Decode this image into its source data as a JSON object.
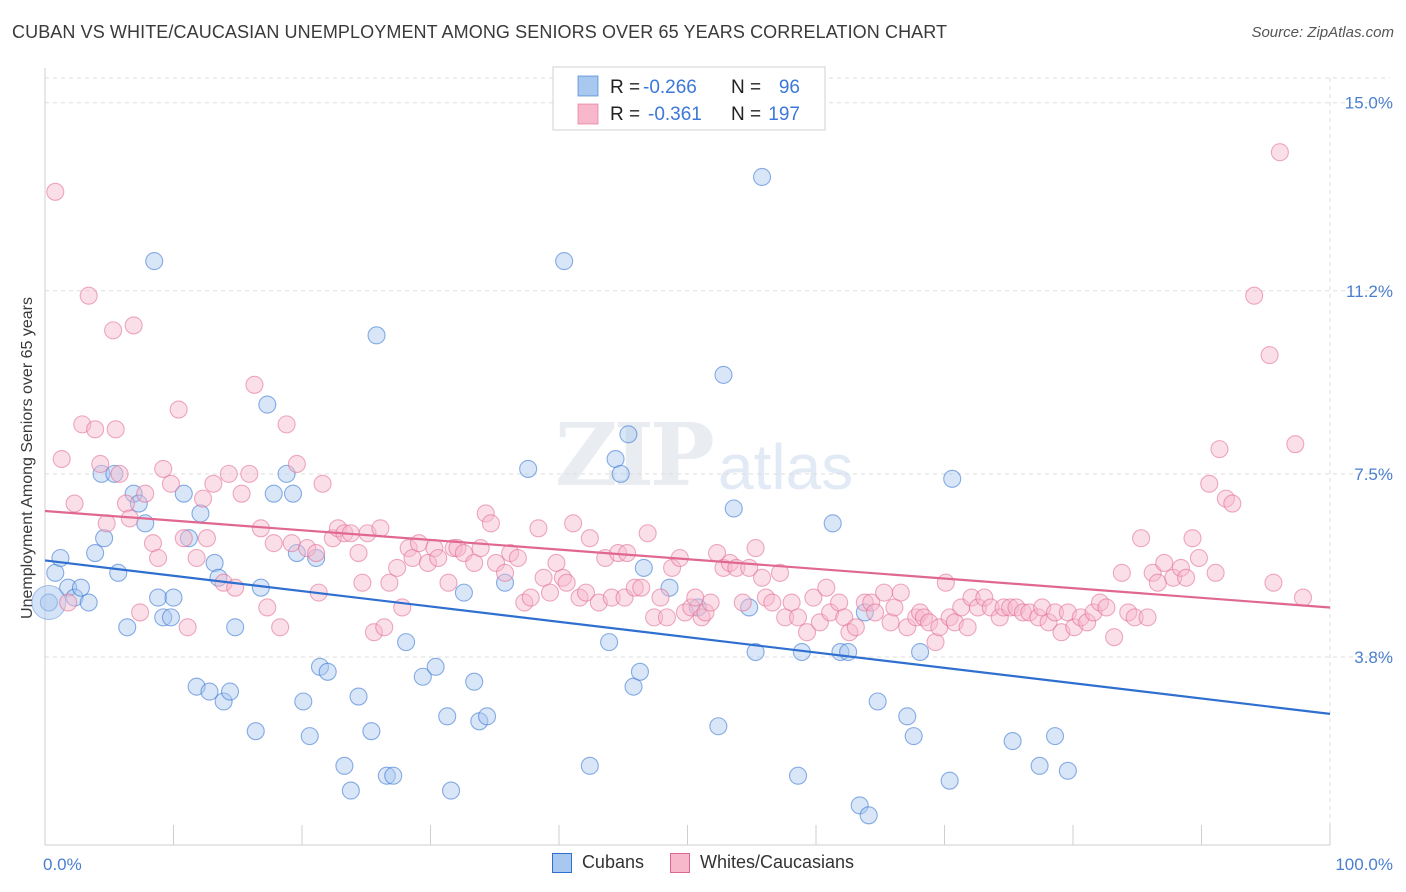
{
  "title": "CUBAN VS WHITE/CAUCASIAN UNEMPLOYMENT AMONG SENIORS OVER 65 YEARS CORRELATION CHART",
  "source": "Source: ZipAtlas.com",
  "watermark": {
    "zip": "ZIP",
    "atlas": "atlas"
  },
  "colors": {
    "cubans_fill": "#a9c8f0",
    "cubans_line": "#2f6fd0",
    "whites_fill": "#f7b8cb",
    "whites_line": "#e06890",
    "tick_text": "#4a7fd0",
    "grid": "#dddddd"
  },
  "legend": {
    "rows": [
      {
        "r_label": "R =",
        "r_value": "-0.266",
        "n_label": "N =",
        "n_value": "96"
      },
      {
        "r_label": "R =",
        "r_value": "-0.361",
        "n_label": "N =",
        "n_value": "197"
      }
    ]
  },
  "bottom_legend": {
    "cubans": "Cubans",
    "whites": "Whites/Caucasians"
  },
  "chart_data": {
    "type": "scatter",
    "title": "CUBAN VS WHITE/CAUCASIAN UNEMPLOYMENT AMONG SENIORS OVER 65 YEARS CORRELATION CHART",
    "xlabel": "",
    "ylabel": "Unemployment Among Seniors over 65 years",
    "xlim": [
      0,
      100
    ],
    "ylim": [
      0,
      15.5
    ],
    "x_ticks": [
      0,
      100
    ],
    "x_tick_labels": [
      "0.0%",
      "100.0%"
    ],
    "y_ticks": [
      3.8,
      7.5,
      11.2,
      15.0
    ],
    "y_tick_labels": [
      "3.8%",
      "7.5%",
      "11.2%",
      "15.0%"
    ],
    "grid": true,
    "legend_position": "top-center",
    "series": [
      {
        "name": "Cubans",
        "R": -0.266,
        "N": 96,
        "trend": {
          "x": [
            0,
            100
          ],
          "y": [
            5.75,
            2.65
          ]
        },
        "points": [
          [
            0.3,
            4.9
          ],
          [
            0.8,
            5.5
          ],
          [
            1.2,
            5.8
          ],
          [
            1.8,
            5.2
          ],
          [
            2.3,
            5.0
          ],
          [
            2.8,
            5.2
          ],
          [
            3.4,
            4.9
          ],
          [
            3.9,
            5.9
          ],
          [
            4.4,
            7.5
          ],
          [
            4.6,
            6.2
          ],
          [
            5.4,
            7.5
          ],
          [
            5.7,
            5.5
          ],
          [
            6.4,
            4.4
          ],
          [
            6.9,
            7.1
          ],
          [
            7.3,
            6.9
          ],
          [
            7.8,
            6.5
          ],
          [
            8.5,
            11.8
          ],
          [
            8.8,
            5.0
          ],
          [
            9.2,
            4.6
          ],
          [
            9.8,
            4.6
          ],
          [
            10.0,
            5.0
          ],
          [
            10.8,
            7.1
          ],
          [
            11.2,
            6.2
          ],
          [
            11.8,
            3.2
          ],
          [
            12.1,
            6.7
          ],
          [
            12.8,
            3.1
          ],
          [
            13.2,
            5.7
          ],
          [
            13.5,
            5.4
          ],
          [
            13.9,
            2.9
          ],
          [
            14.4,
            3.1
          ],
          [
            14.8,
            4.4
          ],
          [
            16.4,
            2.3
          ],
          [
            16.8,
            5.2
          ],
          [
            17.3,
            8.9
          ],
          [
            17.8,
            7.1
          ],
          [
            18.8,
            7.5
          ],
          [
            19.3,
            7.1
          ],
          [
            19.6,
            5.9
          ],
          [
            20.1,
            2.9
          ],
          [
            20.6,
            2.2
          ],
          [
            21.1,
            5.8
          ],
          [
            21.4,
            3.6
          ],
          [
            22.0,
            3.5
          ],
          [
            23.3,
            1.6
          ],
          [
            23.8,
            1.1
          ],
          [
            24.4,
            3.0
          ],
          [
            25.4,
            2.3
          ],
          [
            25.8,
            10.3
          ],
          [
            26.6,
            1.4
          ],
          [
            27.1,
            1.4
          ],
          [
            28.1,
            4.1
          ],
          [
            29.4,
            3.4
          ],
          [
            30.4,
            3.6
          ],
          [
            31.3,
            2.6
          ],
          [
            31.6,
            1.1
          ],
          [
            32.6,
            5.1
          ],
          [
            33.4,
            3.3
          ],
          [
            33.8,
            2.5
          ],
          [
            34.4,
            2.6
          ],
          [
            35.8,
            5.3
          ],
          [
            37.6,
            7.6
          ],
          [
            40.4,
            11.8
          ],
          [
            42.4,
            1.6
          ],
          [
            43.9,
            4.1
          ],
          [
            44.4,
            7.8
          ],
          [
            44.8,
            7.5
          ],
          [
            45.4,
            8.3
          ],
          [
            45.8,
            3.2
          ],
          [
            46.3,
            3.5
          ],
          [
            46.6,
            5.6
          ],
          [
            48.6,
            5.2
          ],
          [
            50.8,
            4.8
          ],
          [
            52.8,
            9.5
          ],
          [
            52.4,
            2.4
          ],
          [
            53.6,
            6.8
          ],
          [
            54.8,
            4.8
          ],
          [
            55.3,
            3.9
          ],
          [
            55.8,
            13.5
          ],
          [
            58.6,
            1.4
          ],
          [
            58.9,
            3.9
          ],
          [
            61.3,
            6.5
          ],
          [
            61.9,
            3.9
          ],
          [
            62.5,
            3.9
          ],
          [
            63.4,
            0.8
          ],
          [
            64.1,
            0.6
          ],
          [
            64.8,
            2.9
          ],
          [
            67.1,
            2.6
          ],
          [
            67.6,
            2.2
          ],
          [
            68.1,
            3.9
          ],
          [
            70.6,
            7.4
          ],
          [
            70.4,
            1.3
          ],
          [
            75.3,
            2.1
          ],
          [
            77.4,
            1.6
          ],
          [
            78.6,
            2.2
          ],
          [
            79.6,
            1.5
          ],
          [
            63.8,
            4.7
          ]
        ]
      },
      {
        "name": "Whites/Caucasians",
        "R": -0.361,
        "N": 197,
        "trend": {
          "x": [
            0,
            100
          ],
          "y": [
            6.75,
            4.8
          ]
        },
        "points": [
          [
            0.8,
            13.2
          ],
          [
            1.3,
            7.8
          ],
          [
            1.8,
            4.9
          ],
          [
            2.3,
            6.9
          ],
          [
            2.9,
            8.5
          ],
          [
            3.4,
            11.1
          ],
          [
            3.9,
            8.4
          ],
          [
            4.3,
            7.7
          ],
          [
            4.8,
            6.5
          ],
          [
            5.3,
            10.4
          ],
          [
            5.5,
            8.4
          ],
          [
            5.8,
            7.5
          ],
          [
            6.3,
            6.9
          ],
          [
            6.6,
            6.6
          ],
          [
            6.9,
            10.5
          ],
          [
            7.4,
            4.7
          ],
          [
            7.8,
            7.1
          ],
          [
            8.4,
            6.1
          ],
          [
            8.8,
            5.8
          ],
          [
            9.2,
            7.6
          ],
          [
            9.8,
            7.3
          ],
          [
            10.4,
            8.8
          ],
          [
            10.8,
            6.2
          ],
          [
            11.1,
            4.4
          ],
          [
            11.8,
            5.8
          ],
          [
            12.3,
            7.0
          ],
          [
            12.6,
            6.2
          ],
          [
            13.1,
            7.3
          ],
          [
            13.9,
            5.3
          ],
          [
            14.3,
            7.5
          ],
          [
            14.8,
            5.2
          ],
          [
            15.3,
            7.1
          ],
          [
            15.9,
            7.5
          ],
          [
            16.3,
            9.3
          ],
          [
            16.8,
            6.4
          ],
          [
            17.3,
            4.8
          ],
          [
            17.8,
            6.1
          ],
          [
            18.3,
            4.4
          ],
          [
            18.8,
            8.5
          ],
          [
            19.2,
            6.1
          ],
          [
            19.6,
            7.7
          ],
          [
            20.4,
            6.0
          ],
          [
            21.1,
            5.9
          ],
          [
            21.3,
            5.1
          ],
          [
            21.6,
            7.3
          ],
          [
            22.4,
            6.2
          ],
          [
            22.8,
            6.4
          ],
          [
            23.3,
            6.3
          ],
          [
            23.8,
            6.3
          ],
          [
            24.4,
            5.9
          ],
          [
            24.7,
            5.3
          ],
          [
            25.1,
            6.3
          ],
          [
            25.6,
            4.3
          ],
          [
            26.1,
            6.4
          ],
          [
            26.4,
            4.4
          ],
          [
            26.8,
            5.3
          ],
          [
            27.4,
            5.6
          ],
          [
            27.8,
            4.8
          ],
          [
            28.3,
            6.0
          ],
          [
            28.6,
            5.8
          ],
          [
            29.1,
            6.1
          ],
          [
            29.8,
            5.7
          ],
          [
            30.3,
            6.0
          ],
          [
            30.6,
            5.8
          ],
          [
            31.4,
            5.3
          ],
          [
            31.8,
            6.0
          ],
          [
            32.1,
            6.0
          ],
          [
            32.6,
            5.9
          ],
          [
            33.4,
            5.7
          ],
          [
            33.9,
            6.0
          ],
          [
            34.3,
            6.7
          ],
          [
            34.7,
            6.5
          ],
          [
            35.1,
            5.7
          ],
          [
            35.8,
            5.5
          ],
          [
            36.2,
            5.9
          ],
          [
            36.8,
            5.8
          ],
          [
            37.3,
            4.9
          ],
          [
            37.8,
            5.0
          ],
          [
            38.4,
            6.4
          ],
          [
            38.8,
            5.4
          ],
          [
            39.3,
            5.1
          ],
          [
            39.8,
            5.7
          ],
          [
            40.3,
            5.4
          ],
          [
            40.6,
            5.3
          ],
          [
            41.1,
            6.5
          ],
          [
            41.6,
            5.0
          ],
          [
            42.1,
            5.1
          ],
          [
            42.4,
            6.2
          ],
          [
            43.1,
            4.9
          ],
          [
            43.6,
            5.8
          ],
          [
            44.1,
            5.0
          ],
          [
            44.6,
            5.9
          ],
          [
            45.1,
            5.0
          ],
          [
            45.3,
            5.9
          ],
          [
            45.9,
            5.2
          ],
          [
            46.4,
            5.2
          ],
          [
            46.9,
            6.3
          ],
          [
            47.4,
            4.6
          ],
          [
            47.9,
            5.0
          ],
          [
            48.4,
            4.6
          ],
          [
            48.8,
            5.6
          ],
          [
            49.4,
            5.8
          ],
          [
            49.8,
            4.7
          ],
          [
            50.3,
            4.8
          ],
          [
            50.6,
            5.0
          ],
          [
            51.1,
            4.6
          ],
          [
            51.4,
            4.7
          ],
          [
            51.8,
            4.9
          ],
          [
            52.3,
            5.9
          ],
          [
            52.8,
            5.6
          ],
          [
            53.3,
            5.7
          ],
          [
            53.8,
            5.6
          ],
          [
            54.3,
            4.9
          ],
          [
            54.8,
            5.6
          ],
          [
            55.3,
            6.0
          ],
          [
            55.8,
            5.4
          ],
          [
            56.1,
            5.0
          ],
          [
            56.6,
            4.9
          ],
          [
            57.2,
            5.5
          ],
          [
            57.6,
            4.6
          ],
          [
            58.1,
            4.9
          ],
          [
            58.6,
            4.6
          ],
          [
            59.3,
            4.3
          ],
          [
            59.8,
            5.0
          ],
          [
            60.3,
            4.5
          ],
          [
            60.8,
            5.2
          ],
          [
            61.1,
            4.7
          ],
          [
            61.8,
            4.9
          ],
          [
            62.2,
            4.6
          ],
          [
            62.6,
            4.3
          ],
          [
            63.1,
            4.4
          ],
          [
            63.8,
            4.9
          ],
          [
            64.3,
            4.9
          ],
          [
            64.6,
            4.7
          ],
          [
            65.3,
            5.1
          ],
          [
            65.8,
            4.5
          ],
          [
            66.1,
            4.8
          ],
          [
            66.6,
            5.1
          ],
          [
            67.1,
            4.4
          ],
          [
            67.8,
            4.6
          ],
          [
            68.1,
            4.7
          ],
          [
            68.4,
            4.6
          ],
          [
            68.8,
            4.5
          ],
          [
            69.3,
            4.1
          ],
          [
            69.6,
            4.4
          ],
          [
            70.1,
            5.3
          ],
          [
            70.4,
            4.6
          ],
          [
            70.8,
            4.5
          ],
          [
            71.3,
            4.8
          ],
          [
            71.8,
            4.4
          ],
          [
            72.1,
            5.0
          ],
          [
            72.6,
            4.8
          ],
          [
            73.1,
            5.0
          ],
          [
            73.6,
            4.8
          ],
          [
            74.3,
            4.6
          ],
          [
            74.6,
            4.8
          ],
          [
            75.1,
            4.8
          ],
          [
            75.6,
            4.8
          ],
          [
            76.1,
            4.7
          ],
          [
            76.6,
            4.7
          ],
          [
            77.3,
            4.6
          ],
          [
            77.6,
            4.8
          ],
          [
            78.1,
            4.5
          ],
          [
            78.6,
            4.7
          ],
          [
            79.1,
            4.3
          ],
          [
            79.6,
            4.7
          ],
          [
            80.1,
            4.4
          ],
          [
            80.6,
            4.6
          ],
          [
            81.1,
            4.5
          ],
          [
            81.6,
            4.7
          ],
          [
            82.1,
            4.9
          ],
          [
            82.6,
            4.8
          ],
          [
            83.2,
            4.2
          ],
          [
            83.8,
            5.5
          ],
          [
            84.3,
            4.7
          ],
          [
            84.8,
            4.6
          ],
          [
            85.3,
            6.2
          ],
          [
            85.8,
            4.6
          ],
          [
            86.2,
            5.5
          ],
          [
            86.6,
            5.3
          ],
          [
            87.1,
            5.7
          ],
          [
            87.8,
            5.4
          ],
          [
            88.4,
            5.6
          ],
          [
            88.8,
            5.4
          ],
          [
            89.3,
            6.2
          ],
          [
            89.8,
            5.8
          ],
          [
            90.6,
            7.3
          ],
          [
            91.1,
            5.5
          ],
          [
            91.4,
            8.0
          ],
          [
            91.9,
            7.0
          ],
          [
            92.4,
            6.9
          ],
          [
            94.1,
            11.1
          ],
          [
            95.3,
            9.9
          ],
          [
            96.1,
            14.0
          ],
          [
            97.3,
            8.1
          ],
          [
            97.9,
            5.0
          ],
          [
            95.6,
            5.3
          ]
        ]
      }
    ]
  }
}
